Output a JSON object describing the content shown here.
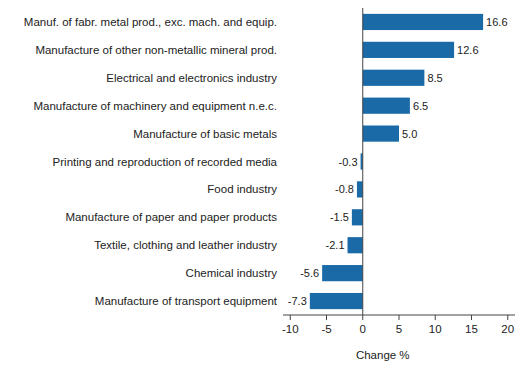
{
  "chart_data": {
    "type": "bar",
    "orientation": "horizontal",
    "categories": [
      "Manuf. of fabr. metal prod., exc. mach. and equip.",
      "Manufacture of other non-metallic mineral prod.",
      "Electrical and electronics industry",
      "Manufacture of machinery and equipment n.e.c.",
      "Manufacture of basic metals",
      "Printing and reproduction of recorded media",
      "Food industry",
      "Manufacture of paper and paper products",
      "Textile, clothing and leather industry",
      "Chemical industry",
      "Manufacture of transport equipment"
    ],
    "values": [
      16.6,
      12.6,
      8.5,
      6.5,
      5.0,
      -0.3,
      -0.8,
      -1.5,
      -2.1,
      -5.6,
      -7.3
    ],
    "value_labels": [
      "16.6",
      "12.6",
      "8.5",
      "6.5",
      "5.0",
      "-0.3",
      "-0.8",
      "-1.5",
      "-2.1",
      "-5.6",
      "-7.3"
    ],
    "data_labels": true,
    "color": "#1a6aa8",
    "x_label": "Change %",
    "xlim": [
      -11,
      21
    ],
    "xticks": [
      -10,
      -5,
      0,
      5,
      10,
      15,
      20
    ],
    "grid": false
  }
}
